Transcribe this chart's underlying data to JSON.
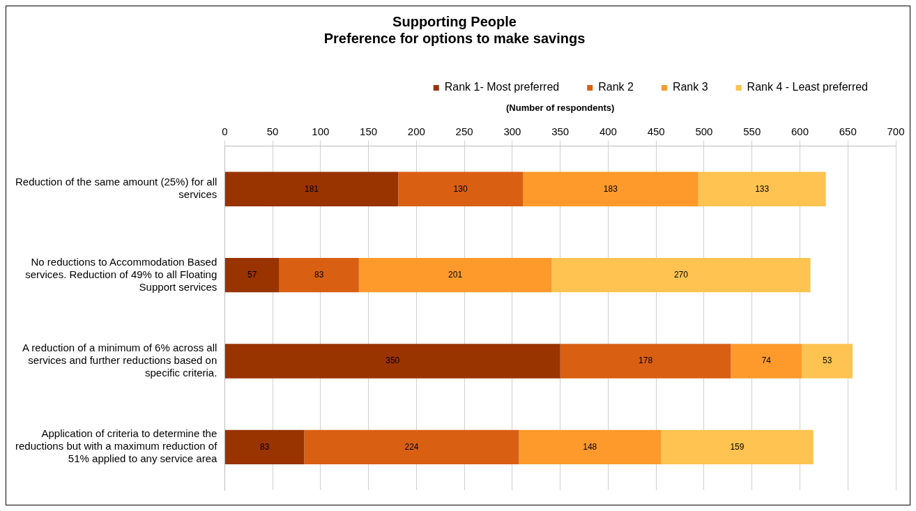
{
  "chart_data": {
    "type": "bar",
    "orientation": "horizontal",
    "stacked": true,
    "title": "Supporting People",
    "subtitle": "Preference for options to make savings",
    "xlabel": "(Number of respondents)",
    "categories": [
      "Reduction of the same amount (25%) for all services",
      "No reductions to Accommodation Based services. Reduction of 49% to all Floating Support services",
      "A reduction of a minimum of 6% across all services and further reductions based on specific criteria.",
      "Application of criteria to determine the reductions but with a maximum reduction of 51% applied to any service area"
    ],
    "series": [
      {
        "name": "Rank 1- Most preferred",
        "color": "#993300",
        "values": [
          181,
          57,
          350,
          83
        ]
      },
      {
        "name": "Rank 2",
        "color": "#d95f13",
        "values": [
          130,
          83,
          178,
          224
        ]
      },
      {
        "name": "Rank 3",
        "color": "#fd9a2b",
        "values": [
          183,
          201,
          74,
          148
        ]
      },
      {
        "name": "Rank 4 - Least preferred",
        "color": "#fec350",
        "values": [
          133,
          270,
          53,
          159
        ]
      }
    ],
    "xlim": [
      0,
      700
    ],
    "xticks": [
      0,
      50,
      100,
      150,
      200,
      250,
      300,
      350,
      400,
      450,
      500,
      550,
      600,
      650,
      700
    ],
    "grid": "x",
    "legend": "top",
    "data_labels": true
  }
}
